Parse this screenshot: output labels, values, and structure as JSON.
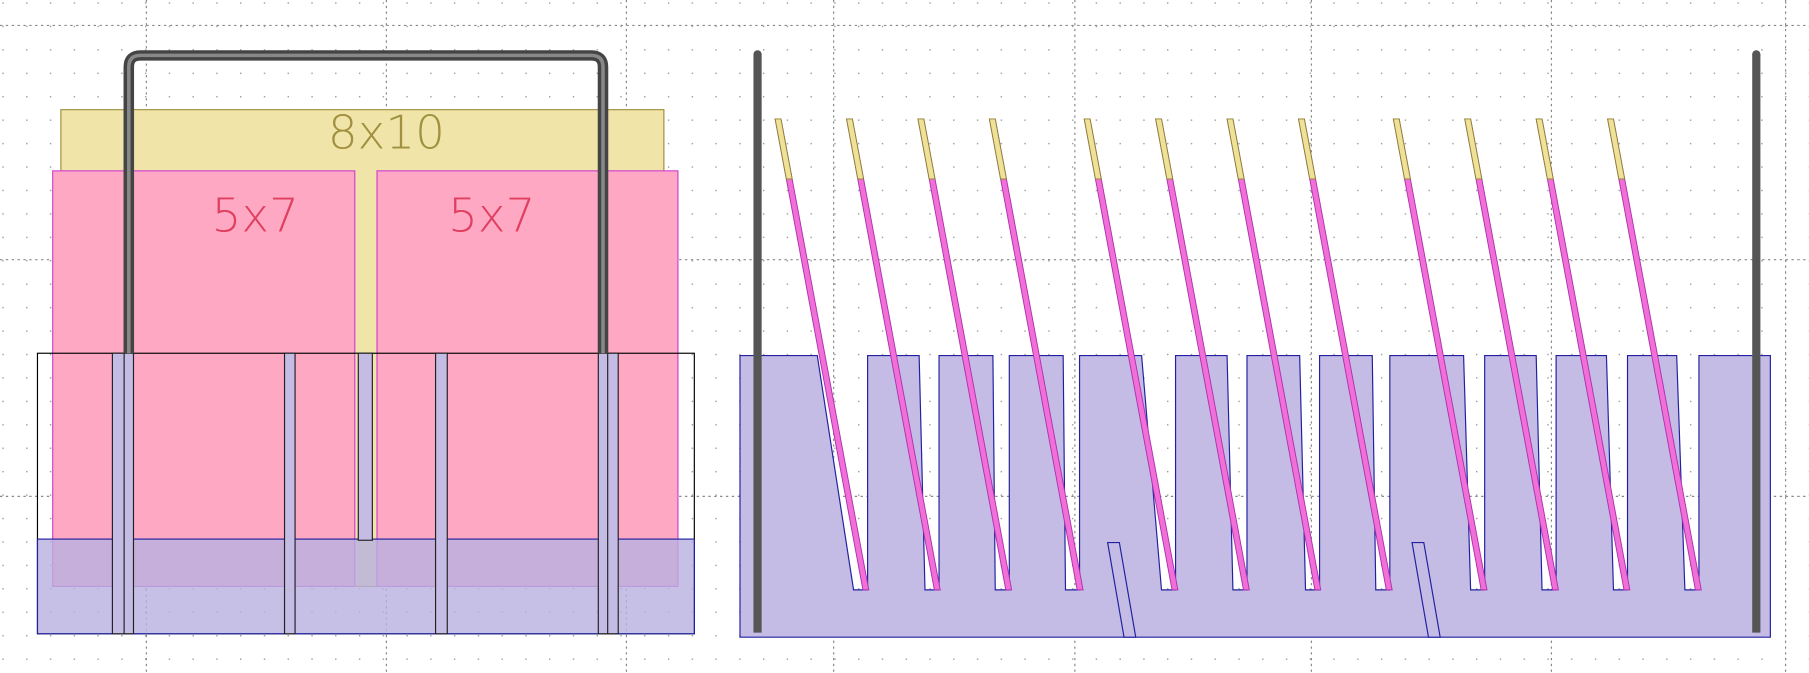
{
  "labels": {
    "large_frame": "8x10",
    "small_frame_left": "5x7",
    "small_frame_right": "5x7"
  }
}
